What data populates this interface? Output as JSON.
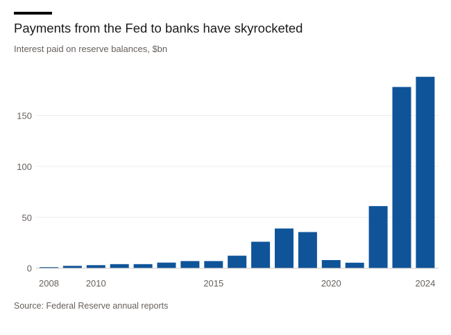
{
  "chart_data": {
    "type": "bar",
    "title": "Payments from the Fed to banks have skyrocketed",
    "subtitle": "Interest paid on reserve balances, $bn",
    "source": "Source: Federal Reserve annual reports",
    "xlabel": "",
    "ylabel": "",
    "categories": [
      2008,
      2009,
      2010,
      2011,
      2012,
      2013,
      2014,
      2015,
      2016,
      2017,
      2018,
      2019,
      2020,
      2021,
      2022,
      2023,
      2024
    ],
    "values": [
      1,
      2.3,
      3,
      4,
      4,
      5.5,
      7,
      7,
      12.3,
      26,
      39,
      35.5,
      8,
      5.4,
      61,
      178,
      188
    ],
    "ylim": [
      0,
      200
    ],
    "yticks": [
      0,
      50,
      100,
      150
    ],
    "xticks": [
      2008,
      2010,
      2015,
      2020,
      2024
    ],
    "grid": true,
    "color": "#0f5499"
  }
}
